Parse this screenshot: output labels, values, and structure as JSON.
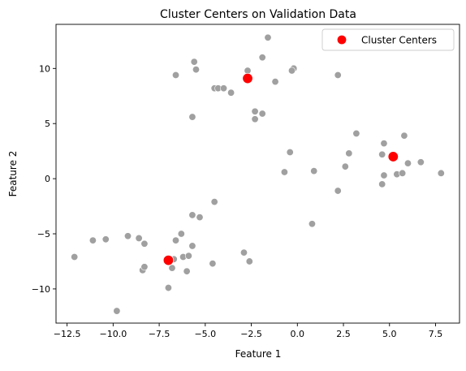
{
  "chart_data": {
    "type": "scatter",
    "title": "Cluster Centers on Validation Data",
    "xlabel": "Feature 1",
    "ylabel": "Feature 2",
    "xlim": [
      -13.1,
      8.8
    ],
    "ylim": [
      -13.1,
      14.0
    ],
    "xticks": [
      -12.5,
      -10.0,
      -7.5,
      -5.0,
      -2.5,
      0.0,
      2.5,
      5.0,
      7.5
    ],
    "xtick_labels": [
      "−12.5",
      "−10.0",
      "−7.5",
      "−5.0",
      "−2.5",
      "0.0",
      "2.5",
      "5.0",
      "7.5"
    ],
    "yticks": [
      -10,
      -5,
      0,
      5,
      10
    ],
    "ytick_labels": [
      "−10",
      "−5",
      "0",
      "5",
      "10"
    ],
    "grid": false,
    "legend_position": "top-right",
    "series": [
      {
        "color": "#a0a0a0",
        "points": [
          [
            -1.6,
            12.8
          ],
          [
            -1.9,
            11.0
          ],
          [
            -5.6,
            10.6
          ],
          [
            -6.6,
            9.4
          ],
          [
            -5.5,
            9.9
          ],
          [
            -2.7,
            9.8
          ],
          [
            -0.2,
            10.0
          ],
          [
            -0.3,
            9.8
          ],
          [
            -1.2,
            8.8
          ],
          [
            -4.5,
            8.2
          ],
          [
            -4.3,
            8.2
          ],
          [
            -4.0,
            8.2
          ],
          [
            -3.6,
            7.8
          ],
          [
            -2.3,
            6.1
          ],
          [
            -1.9,
            5.9
          ],
          [
            -2.3,
            5.4
          ],
          [
            -5.7,
            5.6
          ],
          [
            2.2,
            9.4
          ],
          [
            3.2,
            4.1
          ],
          [
            5.8,
            3.9
          ],
          [
            4.7,
            3.2
          ],
          [
            -0.4,
            2.4
          ],
          [
            2.8,
            2.3
          ],
          [
            4.6,
            2.2
          ],
          [
            6.0,
            1.4
          ],
          [
            6.7,
            1.5
          ],
          [
            2.6,
            1.1
          ],
          [
            0.9,
            0.7
          ],
          [
            -0.7,
            0.6
          ],
          [
            4.7,
            0.3
          ],
          [
            5.4,
            0.4
          ],
          [
            5.7,
            0.5
          ],
          [
            7.8,
            0.5
          ],
          [
            4.6,
            -0.5
          ],
          [
            2.2,
            -1.1
          ],
          [
            0.8,
            -4.1
          ],
          [
            -4.5,
            -2.1
          ],
          [
            -5.7,
            -3.3
          ],
          [
            -5.3,
            -3.5
          ],
          [
            -6.3,
            -5.0
          ],
          [
            -6.6,
            -5.6
          ],
          [
            -5.7,
            -6.1
          ],
          [
            -8.6,
            -5.4
          ],
          [
            -9.2,
            -5.2
          ],
          [
            -10.4,
            -5.5
          ],
          [
            -11.1,
            -5.6
          ],
          [
            -8.3,
            -5.9
          ],
          [
            -12.1,
            -7.1
          ],
          [
            -6.2,
            -7.1
          ],
          [
            -5.9,
            -7.0
          ],
          [
            -6.7,
            -7.3
          ],
          [
            -4.6,
            -7.7
          ],
          [
            -2.9,
            -6.7
          ],
          [
            -2.6,
            -7.5
          ],
          [
            -8.4,
            -8.3
          ],
          [
            -8.3,
            -8.0
          ],
          [
            -6.8,
            -8.1
          ],
          [
            -6.0,
            -8.4
          ],
          [
            -7.0,
            -9.9
          ],
          [
            -9.8,
            -12.0
          ]
        ]
      },
      {
        "name": "Cluster Centers",
        "color": "#ff0000",
        "points": [
          [
            -2.7,
            9.1
          ],
          [
            5.2,
            2.0
          ],
          [
            -7.0,
            -7.4
          ]
        ]
      }
    ]
  }
}
